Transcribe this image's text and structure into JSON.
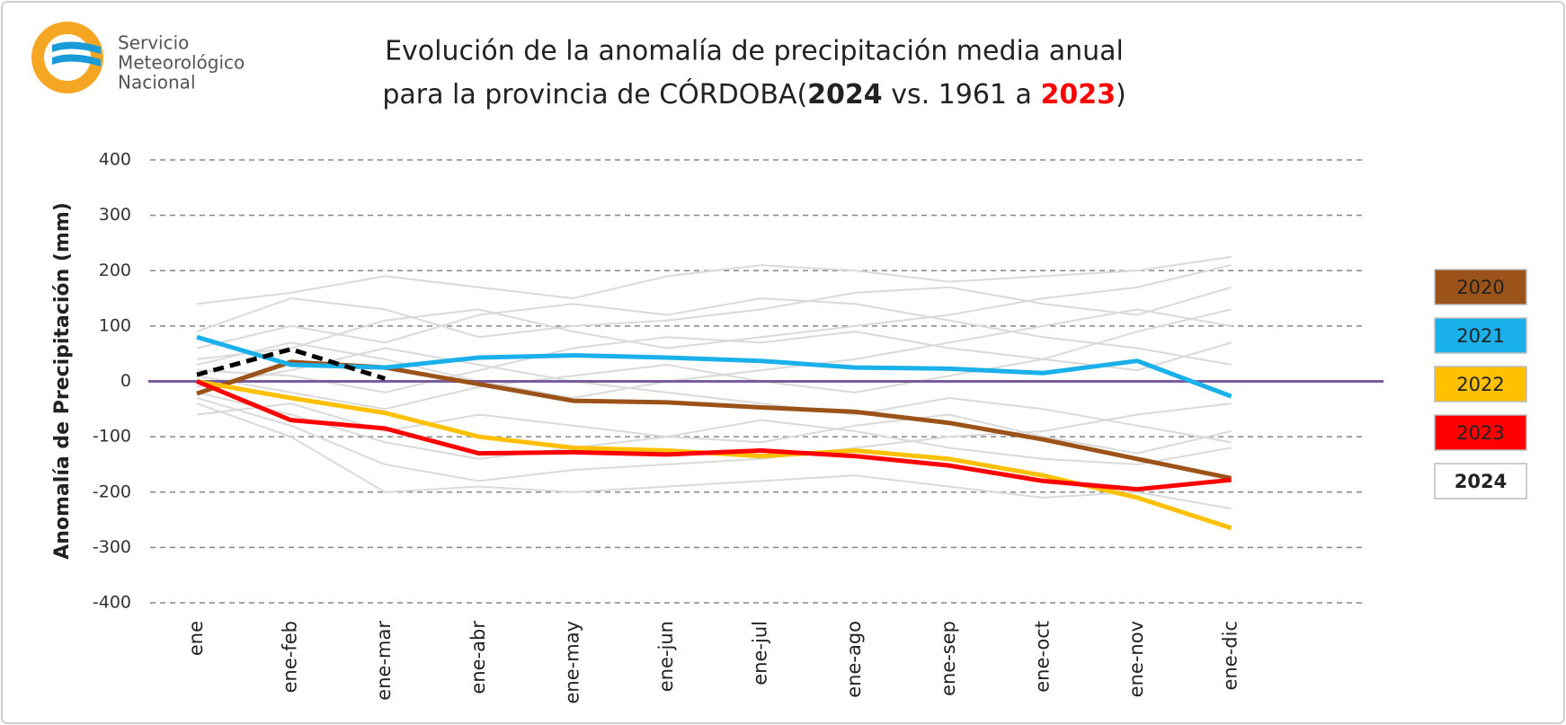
{
  "logo": {
    "lines": [
      "Servicio",
      "Meteorológico",
      "Nacional"
    ]
  },
  "chart_data": {
    "type": "line",
    "title": "Evolución de la anomalía de precipitación media anual",
    "title_line2": [
      {
        "text": "para la provincia de CÓRDOBA("
      },
      {
        "text": "2024",
        "bold": true
      },
      {
        "text": " vs. 1961 a "
      },
      {
        "text": "2023",
        "bold": true,
        "color": "#ff0000"
      },
      {
        "text": ")"
      }
    ],
    "y_label": "Anomalía de Precipitación (mm)",
    "categories": [
      "ene",
      "ene-feb",
      "ene-mar",
      "ene-abr",
      "ene-may",
      "ene-jun",
      "ene-jul",
      "ene-ago",
      "ene-sep",
      "ene-oct",
      "ene-nov",
      "ene-dic"
    ],
    "ylim": [
      -400,
      400
    ],
    "yticks": [
      -400,
      -300,
      -200,
      -100,
      0,
      100,
      200,
      300,
      400
    ],
    "grid": true,
    "grid_style": "dashed",
    "zero_line_color": "#7a5c9e",
    "legend": "right",
    "background_series": [
      {
        "color": "#dadada",
        "values": [
          40,
          60,
          110,
          130,
          90,
          60,
          80,
          100,
          120,
          150,
          170,
          210
        ]
      },
      {
        "color": "#dadada",
        "values": [
          -30,
          -80,
          -150,
          -180,
          -160,
          -150,
          -140,
          -120,
          -100,
          -90,
          -60,
          -40
        ]
      },
      {
        "color": "#dadada",
        "values": [
          140,
          160,
          190,
          170,
          150,
          190,
          210,
          200,
          180,
          190,
          200,
          225
        ]
      },
      {
        "color": "#dadada",
        "values": [
          -40,
          -100,
          -200,
          -190,
          -200,
          -190,
          -180,
          -170,
          -190,
          -210,
          -200,
          -230
        ]
      },
      {
        "color": "#dadada",
        "values": [
          20,
          10,
          -20,
          20,
          60,
          80,
          70,
          90,
          60,
          40,
          90,
          130
        ]
      },
      {
        "color": "#dadada",
        "values": [
          -10,
          20,
          60,
          30,
          0,
          -20,
          -40,
          -60,
          -30,
          -50,
          -80,
          -110
        ]
      },
      {
        "color": "#dadada",
        "values": [
          60,
          100,
          70,
          120,
          140,
          120,
          150,
          140,
          110,
          80,
          60,
          30
        ]
      },
      {
        "color": "#dadada",
        "values": [
          -60,
          -40,
          -90,
          -60,
          -80,
          -100,
          -70,
          -90,
          -120,
          -140,
          -150,
          -120
        ]
      },
      {
        "color": "#dadada",
        "values": [
          10,
          -20,
          -50,
          -10,
          10,
          30,
          0,
          -20,
          10,
          40,
          20,
          70
        ]
      },
      {
        "color": "#dadada",
        "values": [
          90,
          150,
          130,
          80,
          100,
          110,
          130,
          160,
          170,
          140,
          120,
          170
        ]
      },
      {
        "color": "#dadada",
        "values": [
          -20,
          -60,
          -110,
          -140,
          -120,
          -100,
          -110,
          -80,
          -60,
          -100,
          -130,
          -90
        ]
      },
      {
        "color": "#dadada",
        "values": [
          30,
          70,
          40,
          0,
          -30,
          0,
          20,
          40,
          70,
          100,
          130,
          100
        ]
      }
    ],
    "series": [
      {
        "name": "2020",
        "color": "#9c5319",
        "values": [
          -22,
          35,
          25,
          -5,
          -35,
          -38,
          -47,
          -55,
          -75,
          -105,
          -140,
          -175
        ]
      },
      {
        "name": "2021",
        "color": "#1ab0ea",
        "values": [
          80,
          30,
          25,
          43,
          47,
          43,
          37,
          25,
          23,
          15,
          37,
          -27
        ]
      },
      {
        "name": "2022",
        "color": "#ffc000",
        "values": [
          0,
          -30,
          -57,
          -100,
          -120,
          -125,
          -135,
          -125,
          -140,
          -170,
          -210,
          -265
        ]
      },
      {
        "name": "2023",
        "color": "#ff0000",
        "values": [
          0,
          -70,
          -85,
          -130,
          -128,
          -132,
          -125,
          -135,
          -152,
          -180,
          -195,
          -178
        ]
      },
      {
        "name": "2024",
        "color": "#000000",
        "dashed": true,
        "bold": true,
        "legend_fill": "#ffffff",
        "values": [
          12,
          58,
          5,
          null,
          null,
          null,
          null,
          null,
          null,
          null,
          null,
          null
        ]
      }
    ]
  }
}
